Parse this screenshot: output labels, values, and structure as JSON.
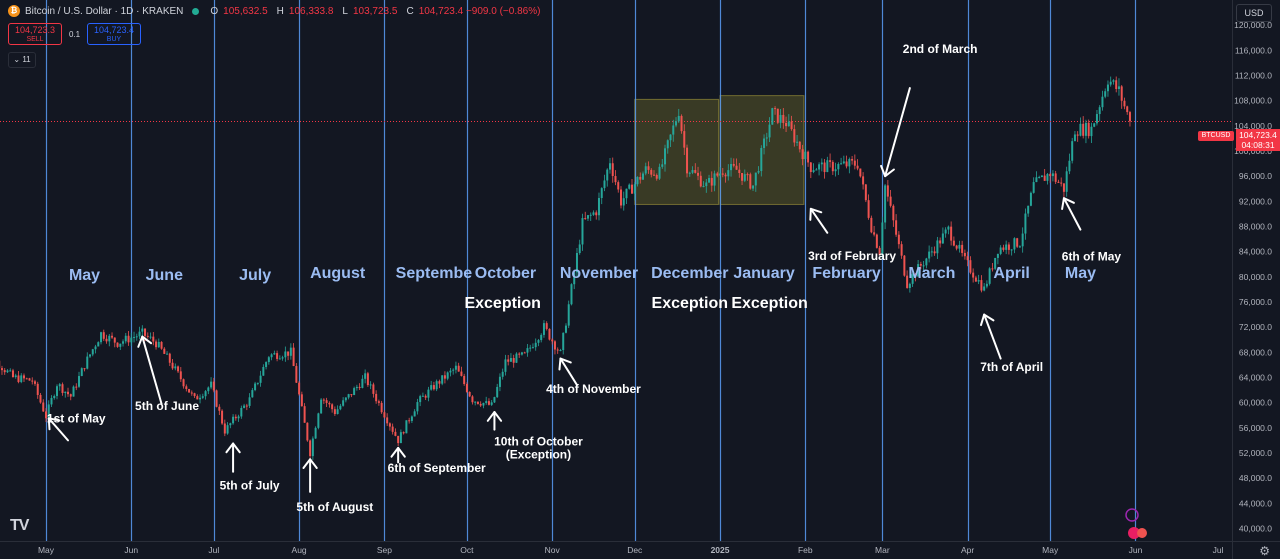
{
  "header": {
    "symbol_title": "Bitcoin / U.S. Dollar · 1D · KRAKEN",
    "o_key": "O",
    "o_val": "105,632.5",
    "h_key": "H",
    "h_val": "106,333.8",
    "l_key": "L",
    "l_val": "103,723.5",
    "c_key": "C",
    "c_val": "104,723.4 −909.0 (−0.86%)"
  },
  "trade": {
    "sell_price": "104,723.3",
    "sell_label": "SELL",
    "spread": "0.1",
    "buy_price": "104,723.4",
    "buy_label": "BUY"
  },
  "indicators_count": "11",
  "currency": "USD",
  "last_price": {
    "symbol": "BTCUSD",
    "price": "104,723.4",
    "countdown": "04:08:31"
  },
  "colors": {
    "background": "#131722",
    "up": "#26a69a",
    "down": "#ef5350",
    "divider": "#5b9cf6",
    "label": "#9bbcf2",
    "shade": "#807a2a"
  },
  "chart_data": {
    "type": "candlestick",
    "interval": "1D",
    "ylim": [
      38000,
      124000
    ],
    "y_ticks": [
      40000,
      44000,
      48000,
      52000,
      56000,
      60000,
      64000,
      68000,
      72000,
      76000,
      80000,
      84000,
      88000,
      92000,
      96000,
      100000,
      104000,
      108000,
      112000,
      116000,
      120000
    ],
    "y_tick_labels": [
      "40,000.0",
      "44,000.0",
      "48,000.0",
      "52,000.0",
      "56,000.0",
      "60,000.0",
      "64,000.0",
      "68,000.0",
      "72,000.0",
      "76,000.0",
      "80,000.0",
      "84,000.0",
      "88,000.0",
      "92,000.0",
      "96,000.0",
      "100,000.0",
      "104,000.0",
      "108,000.0",
      "112,000.0",
      "116,000.0",
      "120,000.0"
    ],
    "x_ticks": [
      "2024-05-01",
      "2024-06-01",
      "2024-07-01",
      "2024-08-01",
      "2024-09-01",
      "2024-10-01",
      "2024-11-01",
      "2024-12-01",
      "2025-01-01",
      "2025-02-01",
      "2025-03-01",
      "2025-04-01",
      "2025-05-01",
      "2025-06-01",
      "2025-07-01"
    ],
    "x_tick_labels": [
      "May",
      "Jun",
      "Jul",
      "Aug",
      "Sep",
      "Oct",
      "Nov",
      "Dec",
      "2025",
      "Feb",
      "Mar",
      "Apr",
      "May",
      "Jun",
      "Jul"
    ],
    "price_path": [
      [
        "2024-04-07",
        69000
      ],
      [
        "2024-04-12",
        67000
      ],
      [
        "2024-04-19",
        64000
      ],
      [
        "2024-04-26",
        63500
      ],
      [
        "2024-05-01",
        57800
      ],
      [
        "2024-05-05",
        63000
      ],
      [
        "2024-05-10",
        61000
      ],
      [
        "2024-05-15",
        66000
      ],
      [
        "2024-05-21",
        71000
      ],
      [
        "2024-05-27",
        69500
      ],
      [
        "2024-06-05",
        71000
      ],
      [
        "2024-06-10",
        69500
      ],
      [
        "2024-06-15",
        66500
      ],
      [
        "2024-06-24",
        60500
      ],
      [
        "2024-06-30",
        62800
      ],
      [
        "2024-07-05",
        55500
      ],
      [
        "2024-07-14",
        60500
      ],
      [
        "2024-07-21",
        67500
      ],
      [
        "2024-07-29",
        68000
      ],
      [
        "2024-08-05",
        52000
      ],
      [
        "2024-08-09",
        61000
      ],
      [
        "2024-08-14",
        58500
      ],
      [
        "2024-08-25",
        64000
      ],
      [
        "2024-09-06",
        54000
      ],
      [
        "2024-09-13",
        60000
      ],
      [
        "2024-09-20",
        63000
      ],
      [
        "2024-09-27",
        65500
      ],
      [
        "2024-10-03",
        60500
      ],
      [
        "2024-10-10",
        59500
      ],
      [
        "2024-10-15",
        66500
      ],
      [
        "2024-10-22",
        67500
      ],
      [
        "2024-10-29",
        72000
      ],
      [
        "2024-11-04",
        67800
      ],
      [
        "2024-11-07",
        75500
      ],
      [
        "2024-11-12",
        88500
      ],
      [
        "2024-11-17",
        90500
      ],
      [
        "2024-11-22",
        98500
      ],
      [
        "2024-11-26",
        92000
      ],
      [
        "2024-12-05",
        97000
      ],
      [
        "2024-12-10",
        96500
      ],
      [
        "2024-12-17",
        106500
      ],
      [
        "2024-12-20",
        97500
      ],
      [
        "2024-12-27",
        94500
      ],
      [
        "2025-01-02",
        97000
      ],
      [
        "2025-01-07",
        97000
      ],
      [
        "2025-01-13",
        94500
      ],
      [
        "2025-01-20",
        106000
      ],
      [
        "2025-01-25",
        104500
      ],
      [
        "2025-02-01",
        99000
      ],
      [
        "2025-02-03",
        97500
      ],
      [
        "2025-02-10",
        97500
      ],
      [
        "2025-02-20",
        98000
      ],
      [
        "2025-02-25",
        88000
      ],
      [
        "2025-02-28",
        84000
      ],
      [
        "2025-03-02",
        94500
      ],
      [
        "2025-03-10",
        79000
      ],
      [
        "2025-03-18",
        83500
      ],
      [
        "2025-03-25",
        87500
      ],
      [
        "2025-03-31",
        82500
      ],
      [
        "2025-04-07",
        78000
      ],
      [
        "2025-04-12",
        84500
      ],
      [
        "2025-04-20",
        85500
      ],
      [
        "2025-04-25",
        94500
      ],
      [
        "2025-05-01",
        96500
      ],
      [
        "2025-05-06",
        94000
      ],
      [
        "2025-05-10",
        103500
      ],
      [
        "2025-05-16",
        103500
      ],
      [
        "2025-05-22",
        111500
      ],
      [
        "2025-05-26",
        109500
      ],
      [
        "2025-05-30",
        104723
      ]
    ],
    "last_price": 104723.4,
    "month_dividers": [
      "2024-05-01",
      "2024-06-01",
      "2024-07-01",
      "2024-08-01",
      "2024-09-01",
      "2024-10-01",
      "2024-11-01",
      "2024-12-01",
      "2025-01-01",
      "2025-02-01",
      "2025-03-01",
      "2025-04-01",
      "2025-05-01",
      "2025-06-01"
    ],
    "shaded_ranges": [
      {
        "from": "2024-12-01",
        "to": "2024-12-31",
        "low": 91500,
        "high": 108200
      },
      {
        "from": "2025-01-01",
        "to": "2025-01-31",
        "low": 91500,
        "high": 108800
      }
    ],
    "month_labels": [
      {
        "text": "May",
        "date": "2024-05-15",
        "price": 79500
      },
      {
        "text": "June",
        "date": "2024-06-13",
        "price": 79500
      },
      {
        "text": "July",
        "date": "2024-07-16",
        "price": 79500
      },
      {
        "text": "August",
        "date": "2024-08-15",
        "price": 79800
      },
      {
        "text": "Septembe",
        "date": "2024-09-19",
        "price": 79800
      },
      {
        "text": "October",
        "date": "2024-10-15",
        "price": 79800
      },
      {
        "text": "November",
        "date": "2024-11-18",
        "price": 79800
      },
      {
        "text": "December",
        "date": "2024-12-21",
        "price": 79800
      },
      {
        "text": "January",
        "date": "2025-01-17",
        "price": 79800
      },
      {
        "text": "February",
        "date": "2025-02-16",
        "price": 79800
      },
      {
        "text": "March",
        "date": "2025-03-19",
        "price": 79800
      },
      {
        "text": "April",
        "date": "2025-04-17",
        "price": 79800
      },
      {
        "text": "May",
        "date": "2025-05-12",
        "price": 79800
      }
    ],
    "exception_labels": [
      {
        "text": "Exception",
        "date": "2024-10-14",
        "price": 75000
      },
      {
        "text": "Exception",
        "date": "2024-12-21",
        "price": 75000
      },
      {
        "text": "Exception",
        "date": "2025-01-19",
        "price": 75000
      }
    ],
    "annotations": [
      {
        "lines": [
          "1st of May"
        ],
        "text_date": "2024-05-12",
        "text_price": 56800,
        "tip_date": "2024-05-02",
        "tip_price": 57500,
        "tail_date": "2024-05-09",
        "tail_price": 54000
      },
      {
        "lines": [
          "5th of June"
        ],
        "text_date": "2024-06-14",
        "text_price": 58800,
        "tip_date": "2024-06-05",
        "tip_price": 70500,
        "tail_date": "2024-06-12",
        "tail_price": 59800
      },
      {
        "lines": [
          "5th of July"
        ],
        "text_date": "2024-07-14",
        "text_price": 46200,
        "tip_date": "2024-07-08",
        "tip_price": 53500,
        "tail_date": "2024-07-08",
        "tail_price": 49000
      },
      {
        "lines": [
          "5th of August"
        ],
        "text_date": "2024-08-14",
        "text_price": 42800,
        "tip_date": "2024-08-05",
        "tip_price": 51000,
        "tail_date": "2024-08-05",
        "tail_price": 45800
      },
      {
        "lines": [
          "6th of September"
        ],
        "text_date": "2024-09-20",
        "text_price": 49000,
        "tip_date": "2024-09-06",
        "tip_price": 52800,
        "tail_date": "2024-09-06",
        "tail_price": 50500
      },
      {
        "lines": [
          "10th of October",
          "(Exception)"
        ],
        "text_date": "2024-10-27",
        "text_price": 53200,
        "tip_date": "2024-10-11",
        "tip_price": 58500,
        "tail_date": "2024-10-11",
        "tail_price": 55700
      },
      {
        "lines": [
          "4th of November"
        ],
        "text_date": "2024-11-16",
        "text_price": 61500,
        "tip_date": "2024-11-04",
        "tip_price": 67000,
        "tail_date": "2024-11-10",
        "tail_price": 62800
      },
      {
        "lines": [
          "3rd of February"
        ],
        "text_date": "2025-02-18",
        "text_price": 82700,
        "tip_date": "2025-02-03",
        "tip_price": 90800,
        "tail_date": "2025-02-09",
        "tail_price": 87000
      },
      {
        "lines": [
          "2nd of March"
        ],
        "text_date": "2025-03-22",
        "text_price": 115600,
        "tip_date": "2025-03-02",
        "tip_price": 96000,
        "tail_date": "2025-03-11",
        "tail_price": 110000
      },
      {
        "lines": [
          "7th of April"
        ],
        "text_date": "2025-04-17",
        "text_price": 65000,
        "tip_date": "2025-04-07",
        "tip_price": 74000,
        "tail_date": "2025-04-13",
        "tail_price": 67000
      },
      {
        "lines": [
          "6th of May"
        ],
        "text_date": "2025-05-16",
        "text_price": 82600,
        "tip_date": "2025-05-06",
        "tip_price": 92500,
        "tail_date": "2025-05-12",
        "tail_price": 87500
      }
    ]
  }
}
